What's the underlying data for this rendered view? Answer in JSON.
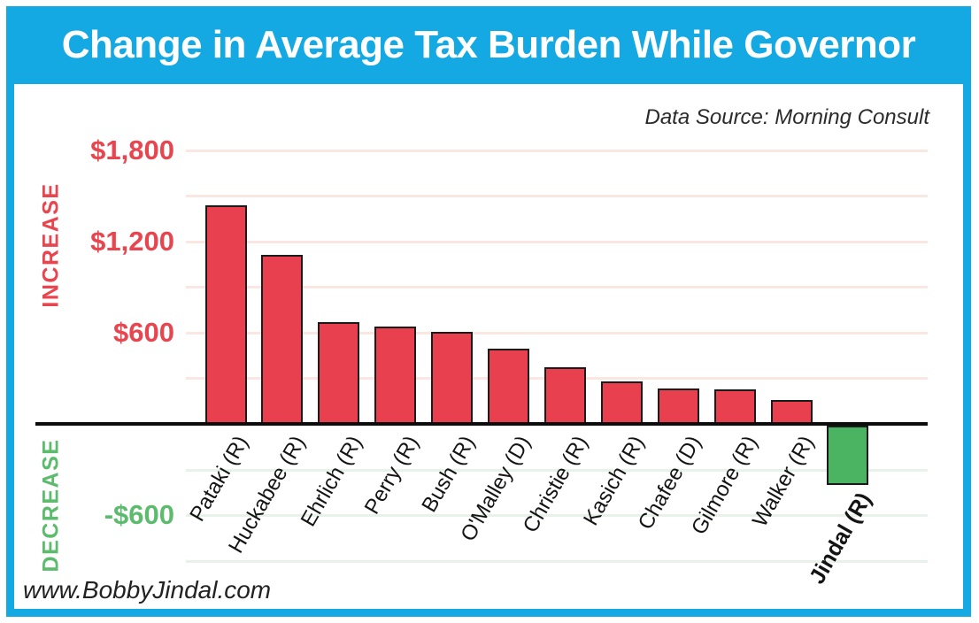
{
  "header": {
    "title": "Change in Average Tax Burden While Governor"
  },
  "annotations": {
    "data_source": "Data Source: Morning Consult",
    "watermark": "www.BobbyJindal.com"
  },
  "axis_bands": {
    "increase": "INCREASE",
    "decrease": "DECREASE"
  },
  "colors": {
    "frame": "#14a9e3",
    "title-text": "#ffffff",
    "bar-positive": "#e8404e",
    "bar-negative": "#4bb462",
    "tick-positive": "#e8454f",
    "tick-negative": "#5cbb6c",
    "grid-positive": "#fbe7e1",
    "grid-negative": "#e7f3e9",
    "axis": "#0d0d0d"
  },
  "chart_data": {
    "type": "bar",
    "title": "Change in Average Tax Burden While Governor",
    "xlabel": "",
    "ylabel": "",
    "categories": [
      "Pataki (R)",
      "Huckabee (R)",
      "Ehrlich (R)",
      "Perry (R)",
      "Bush (R)",
      "O'Malley (D)",
      "Christie (R)",
      "Kasich (R)",
      "Chafee (D)",
      "Gilmore (R)",
      "Walker (R)",
      "Jindal (R)"
    ],
    "values": [
      1440,
      1115,
      670,
      640,
      605,
      495,
      370,
      280,
      235,
      225,
      160,
      -390
    ],
    "ylim": [
      -900,
      1800
    ],
    "yticks": [
      {
        "label": "$1,800",
        "value": 1800
      },
      {
        "label": "$1,200",
        "value": 1200
      },
      {
        "label": "$600",
        "value": 600
      },
      {
        "label": "-$600",
        "value": -600
      }
    ],
    "gridline_values": [
      1800,
      1500,
      1200,
      900,
      600,
      300,
      -300,
      -600,
      -900
    ],
    "grid": true,
    "legend": false,
    "annotations": [
      "INCREASE",
      "DECREASE"
    ],
    "highlighted_category": "Jindal (R)"
  }
}
